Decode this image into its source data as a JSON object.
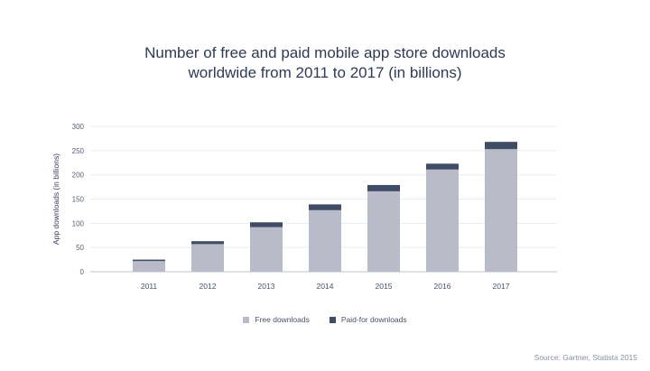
{
  "chart_data": {
    "type": "bar",
    "stacked": true,
    "title_lines": [
      "Number of free and paid mobile app store downloads",
      "worldwide from 2011 to 2017 (in billions)"
    ],
    "ylabel": "App downloads (in billions)",
    "xlabel": "",
    "ylim": [
      0,
      300
    ],
    "yticks": [
      0,
      50,
      100,
      150,
      200,
      250,
      300
    ],
    "categories": [
      "2011",
      "2012",
      "2013",
      "2014",
      "2015",
      "2016",
      "2017"
    ],
    "series": [
      {
        "name": "Free downloads",
        "color": "#babbc8",
        "values": [
          22,
          57,
          92,
          127,
          166,
          211,
          253
        ]
      },
      {
        "name": "Paid-for downloads",
        "color": "#404b66",
        "values": [
          3,
          6,
          10,
          12,
          13,
          12,
          15
        ]
      }
    ],
    "grid": true,
    "legend_position": "bottom-center",
    "source": "Source: Gartner, Statista 2015"
  }
}
